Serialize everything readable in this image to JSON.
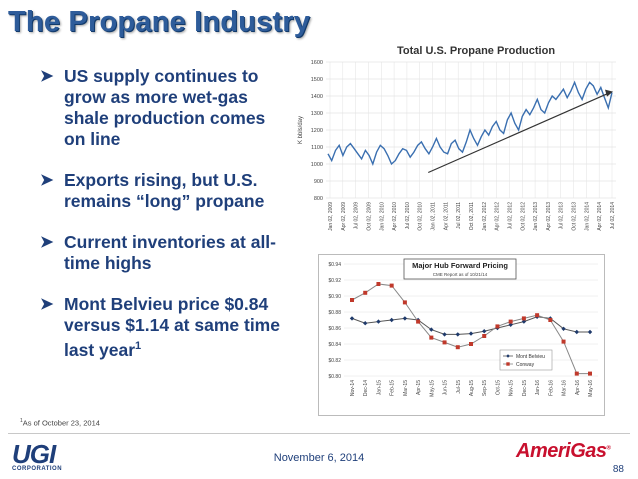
{
  "slide": {
    "title": "The Propane Industry",
    "bullets": [
      {
        "text": "US supply continues to grow as more wet-gas shale production comes on line"
      },
      {
        "text": "Exports rising, but U.S. remains “long” propane"
      },
      {
        "text": "Current inventories at all-time highs"
      },
      {
        "text": "Mont Belvieu price $0.84 versus $1.14 at same time last year",
        "sup": "1"
      }
    ],
    "footnote": {
      "sup": "1",
      "text": "As of October 23, 2014"
    },
    "date": "November 6, 2014",
    "page_number": "88",
    "logo_left": {
      "main": "UGI",
      "sub": "CORPORATION"
    },
    "logo_right": {
      "main": "AmeriGas",
      "tm": "®"
    }
  },
  "colors": {
    "title": "#2e5c9a",
    "text": "#1f3f7a",
    "line_blue": "#3a6fb0",
    "series_dark": "#1f3a6b",
    "series_red": "#c0392b"
  },
  "chart_data": [
    {
      "type": "line",
      "title": "Total U.S. Propane Production",
      "ylabel": "K bbls/day",
      "ylim": [
        800,
        1600
      ],
      "yticks": [
        "1600",
        "1500",
        "1400",
        "1300",
        "1200",
        "1100",
        "1000",
        "900",
        "800"
      ],
      "xticks": [
        "Jan 02, 2009",
        "Apr 02, 2009",
        "Jul 02, 2009",
        "Oct 02, 2009",
        "Jan 02, 2010",
        "Apr 02, 2010",
        "Jul 02, 2010",
        "Oct 02, 2010",
        "Jan 02, 2011",
        "Apr 02, 2011",
        "Jul 02, 2011",
        "Oct 02, 2011",
        "Jan 02, 2012",
        "Apr 02, 2012",
        "Jul 02, 2012",
        "Oct 02, 2012",
        "Jan 02, 2013",
        "Apr 02, 2013",
        "Jul 02, 2013",
        "Oct 02, 2013",
        "Jan 02, 2014",
        "Apr 02, 2014",
        "Jul 02, 2014"
      ],
      "grid": true,
      "series": [
        {
          "values": [
            1060,
            1020,
            1080,
            1110,
            1050,
            1100,
            1120,
            1090,
            1060,
            1030,
            1080,
            1050,
            1000,
            1070,
            1110,
            1090,
            1050,
            1000,
            1020,
            1060,
            1090,
            1080,
            1040,
            1070,
            1110,
            1130,
            1090,
            1060,
            1100,
            1150,
            1100,
            1070,
            1060,
            1120,
            1140,
            1090,
            1070,
            1130,
            1200,
            1150,
            1110,
            1160,
            1200,
            1170,
            1220,
            1250,
            1200,
            1180,
            1260,
            1300,
            1240,
            1200,
            1280,
            1320,
            1290,
            1330,
            1380,
            1320,
            1300,
            1360,
            1400,
            1380,
            1410,
            1440,
            1390,
            1430,
            1480,
            1420,
            1380,
            1440,
            1480,
            1460,
            1410,
            1450,
            1390,
            1330,
            1420
          ]
        }
      ],
      "trend": {
        "from": [
          0.36,
          950
        ],
        "to": [
          1.0,
          1420
        ]
      }
    },
    {
      "type": "line",
      "title": "Major Hub Forward Pricing",
      "subtitle": "CME Report as of 10/21/14",
      "ylim": [
        0.8,
        0.94
      ],
      "yticks": [
        "$0.94",
        "$0.92",
        "$0.90",
        "$0.88",
        "$0.86",
        "$0.84",
        "$0.82",
        "$0.80"
      ],
      "categories": [
        "Nov-14",
        "Dec-14",
        "Jan-15",
        "Feb-15",
        "Mar-15",
        "Apr-15",
        "May-15",
        "Jun-15",
        "Jul-15",
        "Aug-15",
        "Sep-15",
        "Oct-15",
        "Nov-15",
        "Dec-15",
        "Jan-16",
        "Feb-16",
        "Mar-16",
        "Apr-16",
        "May-16"
      ],
      "legend": "lower-right",
      "series": [
        {
          "name": "Mont Belvieu",
          "values": [
            0.872,
            0.866,
            0.868,
            0.87,
            0.872,
            0.87,
            0.858,
            0.852,
            0.852,
            0.853,
            0.856,
            0.86,
            0.864,
            0.868,
            0.874,
            0.872,
            0.859,
            0.855,
            0.855
          ]
        },
        {
          "name": "Conway",
          "values": [
            0.895,
            0.904,
            0.915,
            0.913,
            0.892,
            0.868,
            0.848,
            0.842,
            0.836,
            0.84,
            0.85,
            0.862,
            0.868,
            0.872,
            0.876,
            0.87,
            0.843,
            0.803,
            0.803
          ]
        }
      ]
    }
  ]
}
